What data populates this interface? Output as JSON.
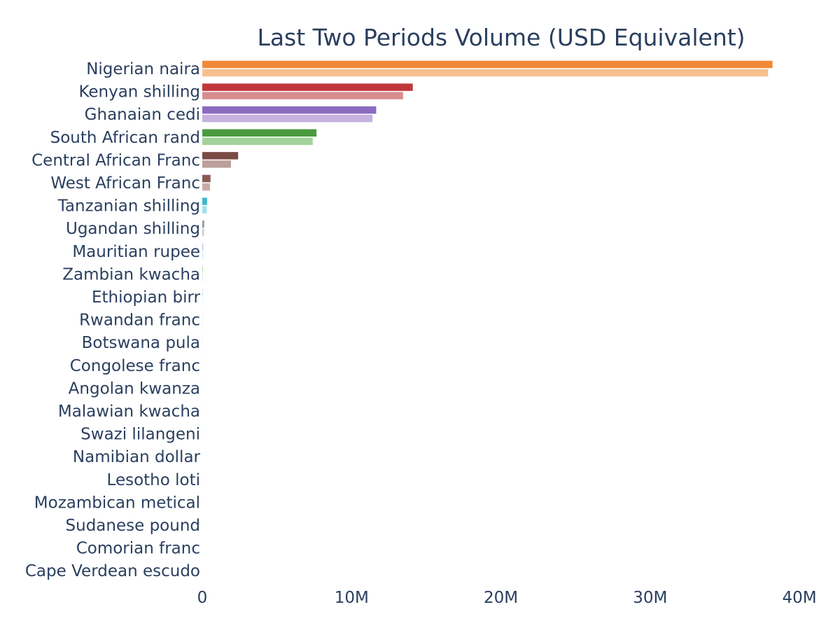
{
  "chart_data": {
    "type": "bar",
    "orientation": "horizontal",
    "title": "Last Two Periods Volume (USD Equivalent)",
    "xlabel": "",
    "ylabel": "",
    "xlim": [
      0,
      40000000
    ],
    "x_ticks": [
      {
        "value": 0,
        "label": "0"
      },
      {
        "value": 10000000,
        "label": "10M"
      },
      {
        "value": 20000000,
        "label": "20M"
      },
      {
        "value": 30000000,
        "label": "30M"
      },
      {
        "value": 40000000,
        "label": "40M"
      }
    ],
    "grid": false,
    "legend": "none",
    "categories": [
      "Nigerian naira",
      "Kenyan shilling",
      "Ghanaian cedi",
      "South African rand",
      "Central African Franc",
      "West African Franc",
      "Tanzanian shilling",
      "Ugandan shilling",
      "Mauritian rupee",
      "Zambian kwacha",
      "Ethiopian birr",
      "Rwandan franc",
      "Botswana pula",
      "Congolese franc",
      "Angolan kwanza",
      "Malawian kwacha",
      "Swazi lilangeni",
      "Namibian dollar",
      "Lesotho loti",
      "Mozambican metical",
      "Sudanese pound",
      "Comorian franc",
      "Cape Verdean escudo"
    ],
    "series": [
      {
        "values": [
          38200000,
          14100000,
          11650000,
          7650000,
          2400000,
          550000,
          320000,
          130000,
          60000,
          40000,
          25000,
          15000,
          8000,
          5000,
          4000,
          3000,
          2000,
          1500,
          1000,
          800,
          500,
          300,
          200
        ]
      },
      {
        "values": [
          37900000,
          13450000,
          11400000,
          7400000,
          1920000,
          520000,
          300000,
          110000,
          50000,
          35000,
          20000,
          12000,
          7000,
          4000,
          3000,
          2500,
          1800,
          1200,
          900,
          700,
          400,
          250,
          150
        ]
      }
    ],
    "colors": {
      "dark": [
        "#f08a38",
        "#c0373a",
        "#8b6ac0",
        "#4a9a3f",
        "#7a4b44",
        "#8a5a52",
        "#3fb8cc",
        "#9a9a9a",
        "#b0c8e8",
        "#b8d0a0",
        "#b0c8e8",
        "#c8c8c8",
        "#c8c8c8",
        "#c8c8c8",
        "#c8c8c8",
        "#c8c8c8",
        "#c8c8c8",
        "#c8c8c8",
        "#c8c8c8",
        "#c8c8c8",
        "#c8c8c8",
        "#c8c8c8",
        "#c8c8c8"
      ],
      "light": [
        "#f6c08e",
        "#d88d8f",
        "#c4b1de",
        "#a3d29a",
        "#bba09c",
        "#c8aaa6",
        "#9fe0ea",
        "#cccccc",
        "#d6e4f4",
        "#dbe8cf",
        "#d6e4f4",
        "#e4e4e4",
        "#e4e4e4",
        "#e4e4e4",
        "#e4e4e4",
        "#e4e4e4",
        "#e4e4e4",
        "#e4e4e4",
        "#e4e4e4",
        "#e4e4e4",
        "#e4e4e4",
        "#e4e4e4",
        "#e4e4e4"
      ],
      "text": "#2a3f5f",
      "background": "#ffffff"
    }
  }
}
